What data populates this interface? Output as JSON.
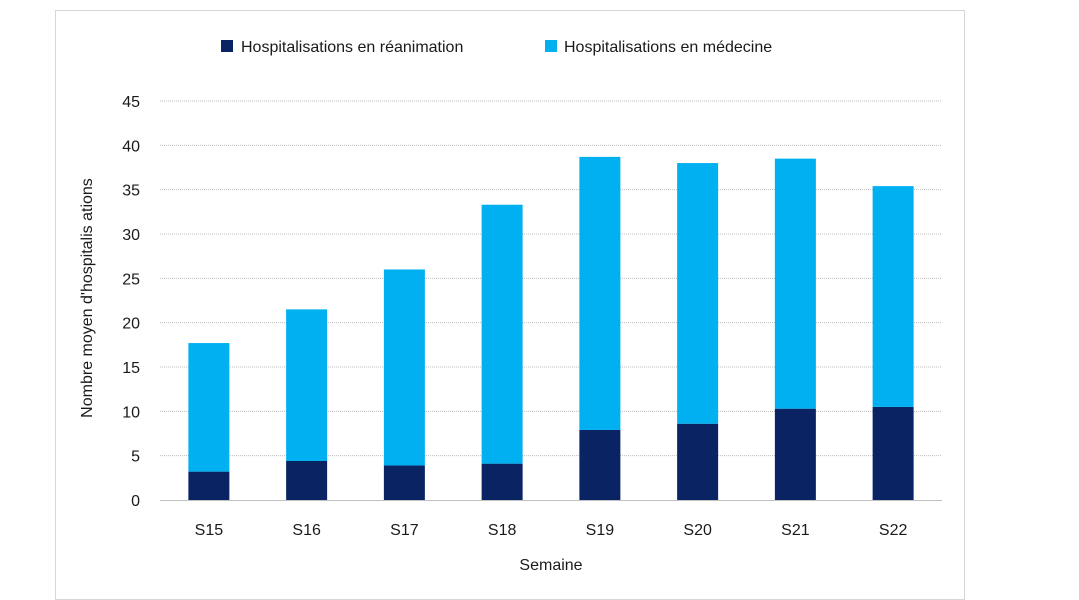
{
  "chart_data": {
    "type": "bar",
    "stacked": true,
    "title": "",
    "xlabel": "Semaine",
    "ylabel": "Nombre moyen d'hospitalis ations",
    "categories": [
      "S15",
      "S16",
      "S17",
      "S18",
      "S19",
      "S20",
      "S21",
      "S22"
    ],
    "series": [
      {
        "name": "Hospitalisations en réanimation",
        "color": "#0a2463",
        "values": [
          3.2,
          4.4,
          3.9,
          4.1,
          7.9,
          8.6,
          10.3,
          10.5
        ]
      },
      {
        "name": "Hospitalisations en médecine",
        "color": "#00b0f0",
        "values": [
          14.5,
          17.1,
          22.1,
          29.2,
          30.8,
          29.4,
          28.2,
          24.9
        ]
      }
    ],
    "ylim": [
      0,
      45
    ],
    "yticks": [
      0,
      5,
      10,
      15,
      20,
      25,
      30,
      35,
      40,
      45
    ],
    "grid": true,
    "legend_position": "top"
  }
}
